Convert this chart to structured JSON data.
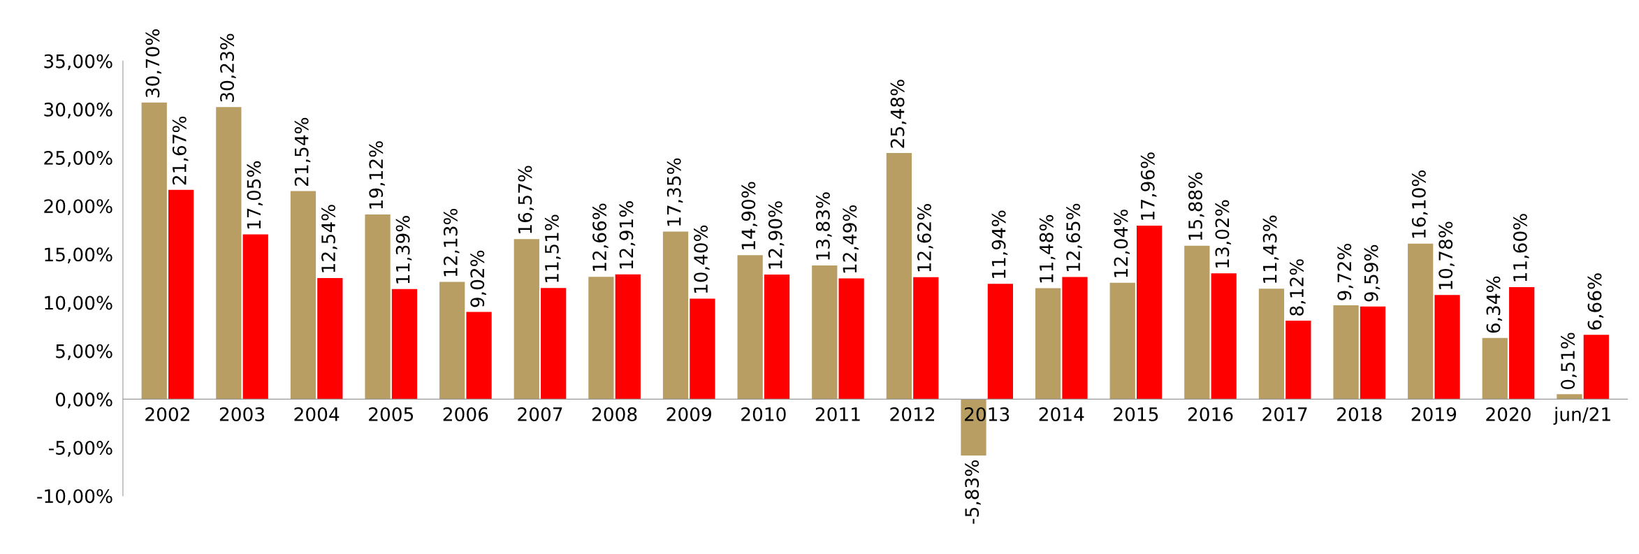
{
  "chart_data": {
    "type": "bar",
    "categories": [
      "2002",
      "2003",
      "2004",
      "2005",
      "2006",
      "2007",
      "2008",
      "2009",
      "2010",
      "2011",
      "2012",
      "2013",
      "2014",
      "2015",
      "2016",
      "2017",
      "2018",
      "2019",
      "2020",
      "jun/21"
    ],
    "series": [
      {
        "color": "#b89e62",
        "values": [
          30.7,
          30.23,
          21.54,
          19.12,
          12.13,
          16.57,
          12.66,
          17.35,
          14.9,
          13.83,
          25.48,
          -5.83,
          11.48,
          12.04,
          15.88,
          11.43,
          9.72,
          16.1,
          6.34,
          0.51
        ],
        "value_labels": [
          "30,70%",
          "30,23%",
          "21,54%",
          "19,12%",
          "12,13%",
          "16,57%",
          "12,66%",
          "17,35%",
          "14,90%",
          "13,83%",
          "25,48%",
          "-5,83%",
          "11,48%",
          "12,04%",
          "15,88%",
          "11,43%",
          "9,72%",
          "16,10%",
          "6,34%",
          "0,51%"
        ]
      },
      {
        "color": "#ff0000",
        "values": [
          21.67,
          17.05,
          12.54,
          11.39,
          9.02,
          11.51,
          12.91,
          10.4,
          12.9,
          12.49,
          12.62,
          11.94,
          12.65,
          17.96,
          13.02,
          8.12,
          9.59,
          10.78,
          11.6,
          6.66
        ],
        "value_labels": [
          "21,67%",
          "17,05%",
          "12,54%",
          "11,39%",
          "9,02%",
          "11,51%",
          "12,91%",
          "10,40%",
          "12,90%",
          "12,49%",
          "12,62%",
          "11,94%",
          "12,65%",
          "17,96%",
          "13,02%",
          "8,12%",
          "9,59%",
          "10,78%",
          "11,60%",
          "6,66%"
        ]
      }
    ],
    "ylim": [
      -10,
      35
    ],
    "yticks": [
      {
        "value": -10,
        "label": "-10,00%"
      },
      {
        "value": -5,
        "label": "-5,00%"
      },
      {
        "value": 0,
        "label": "0,00%"
      },
      {
        "value": 5,
        "label": "5,00%"
      },
      {
        "value": 10,
        "label": "10,00%"
      },
      {
        "value": 15,
        "label": "15,00%"
      },
      {
        "value": 20,
        "label": "20,00%"
      },
      {
        "value": 25,
        "label": "25,00%"
      },
      {
        "value": 30,
        "label": "30,00%"
      },
      {
        "value": 35,
        "label": "35,00%"
      }
    ],
    "grid": false,
    "legend": false
  }
}
